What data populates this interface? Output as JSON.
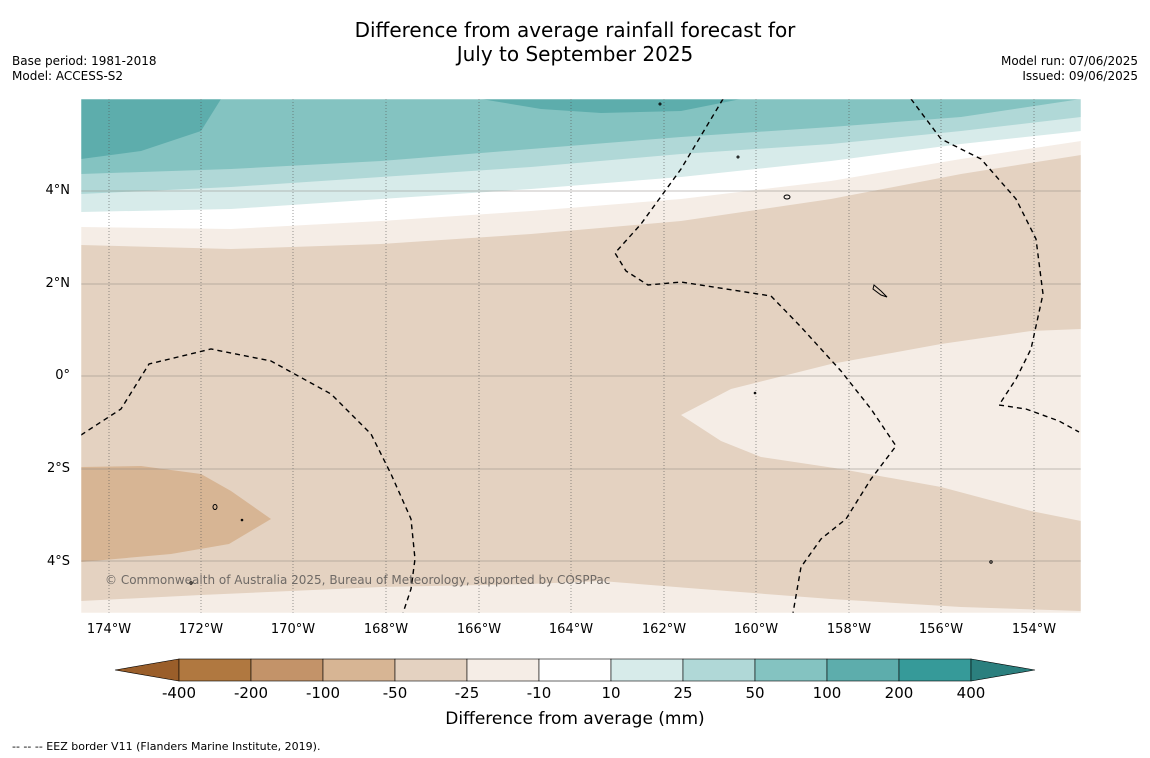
{
  "title": {
    "line1": "Difference from average rainfall forecast for",
    "line2": "July to September 2025"
  },
  "meta_left": {
    "line1": "Base period: 1981-2018",
    "line2": "Model: ACCESS-S2"
  },
  "meta_right": {
    "line1": "Model run: 07/06/2025",
    "line2": "Issued: 09/06/2025"
  },
  "lat_labels": [
    "4°N",
    "2°N",
    "0°",
    "2°S",
    "4°S"
  ],
  "lon_labels": [
    "174°W",
    "172°W",
    "170°W",
    "168°W",
    "166°W",
    "164°W",
    "162°W",
    "160°W",
    "158°W",
    "156°W",
    "154°W"
  ],
  "copyright": "© Commonwealth of Australia 2025, Bureau of Meteorology, supported by COSPPac",
  "colorbar": {
    "labels": [
      "-400",
      "-200",
      "-100",
      "-50",
      "-25",
      "-10",
      "10",
      "25",
      "50",
      "100",
      "200",
      "400"
    ],
    "colors": [
      "#9a5e2a",
      "#b07840",
      "#c39369",
      "#d7b594",
      "#e4d2c1",
      "#f5ede6",
      "#ffffff",
      "#d7ebea",
      "#b0d8d7",
      "#84c3c1",
      "#5dadac",
      "#369a99",
      "#2b7f7e"
    ],
    "title": "Difference from average (mm)"
  },
  "footnote": "--  --  -- EEZ border V11 (Flanders Marine Institute, 2019)."
}
